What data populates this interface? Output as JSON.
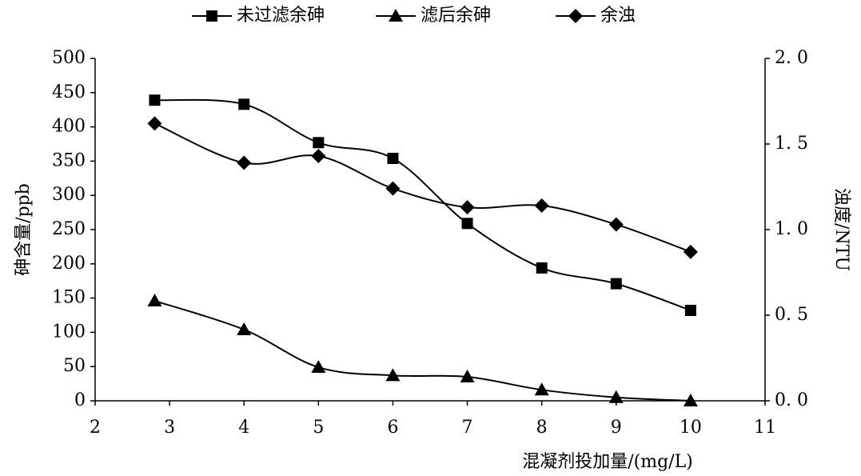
{
  "chart_data": {
    "type": "line",
    "x": [
      2.8,
      4,
      5,
      6,
      7,
      8,
      9,
      10
    ],
    "xlabel": "混凝剂投加量/(mg/L)",
    "ylabel": "砷含量/ppb",
    "y2label": "浊度/NTU",
    "xlim": [
      2,
      11
    ],
    "xticks": [
      2,
      3,
      4,
      5,
      6,
      7,
      8,
      9,
      10,
      11
    ],
    "ylim": [
      0,
      500
    ],
    "yticks": [
      0,
      50,
      100,
      150,
      200,
      250,
      300,
      350,
      400,
      450,
      500
    ],
    "y2lim": [
      0,
      2
    ],
    "y2ticks": [
      {
        "value": 0,
        "label": "0. 0"
      },
      {
        "value": 0.5,
        "label": "0. 5"
      },
      {
        "value": 1,
        "label": "1. 0"
      },
      {
        "value": 1.5,
        "label": "1. 5"
      },
      {
        "value": 2,
        "label": "2. 0"
      }
    ],
    "grid": false,
    "legend": "top",
    "series": [
      {
        "name": "未过滤余砷",
        "color": "#000000",
        "marker": "square",
        "values": [
          439,
          433,
          377,
          354,
          259,
          194,
          171,
          132
        ]
      },
      {
        "name": "滤后余砷",
        "color": "#000000",
        "marker": "triangle",
        "values": [
          146,
          104,
          49,
          37,
          35,
          16,
          5,
          0
        ]
      },
      {
        "name": "余浊",
        "color": "#000000",
        "marker": "diamond",
        "axis": "y2",
        "values": [
          1.62,
          1.39,
          1.43,
          1.24,
          1.13,
          1.14,
          1.03,
          0.87
        ]
      }
    ]
  }
}
